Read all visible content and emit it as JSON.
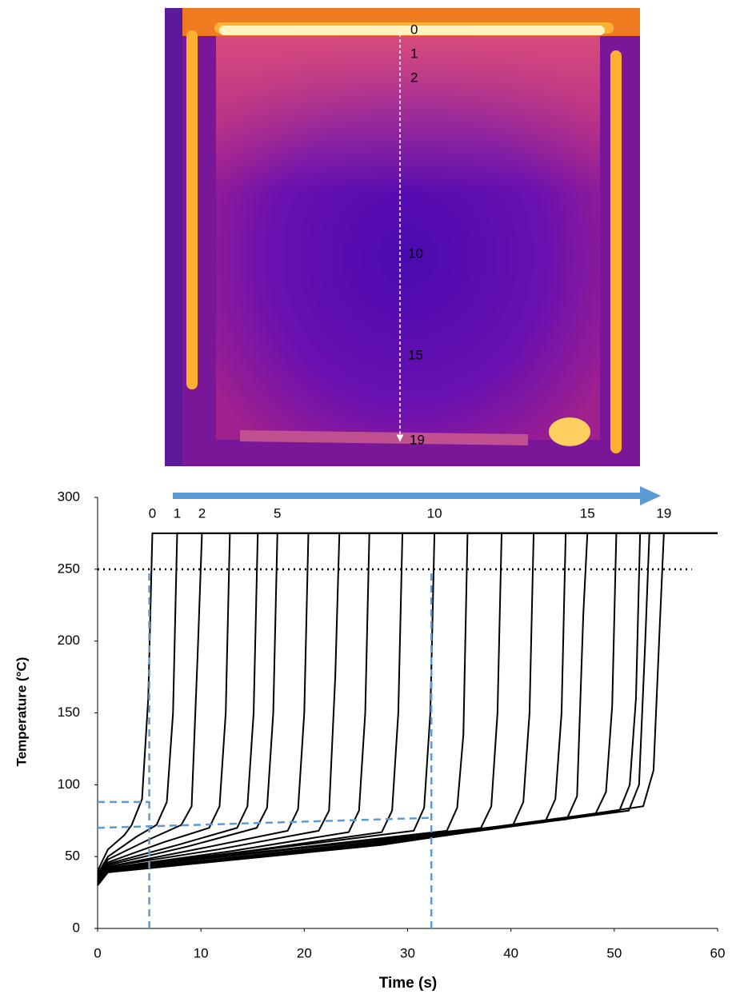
{
  "image": {
    "labels": [
      "0",
      "1",
      "2",
      "10",
      "15",
      "19"
    ]
  },
  "chart_data": {
    "type": "line",
    "y_label": "Temperature (°C)",
    "x_label": "Time (s)",
    "xlim": [
      0,
      60
    ],
    "ylim": [
      0,
      300
    ],
    "xticks": [
      0,
      10,
      20,
      30,
      40,
      50,
      60
    ],
    "yticks": [
      0,
      50,
      100,
      150,
      200,
      250,
      300
    ],
    "grid": false,
    "color": "#000000",
    "series": [
      {
        "name": "0",
        "x": [
          0,
          1,
          2.6,
          3.3,
          4.3,
          4.9,
          5.3,
          60
        ],
        "values": [
          40,
          55,
          65,
          72,
          90,
          160,
          275,
          275
        ]
      },
      {
        "name": "1",
        "x": [
          0,
          1,
          3.8,
          5.7,
          6.7,
          7.3,
          7.7,
          60
        ],
        "values": [
          38,
          50,
          64,
          72,
          88,
          150,
          275,
          275
        ]
      },
      {
        "name": "2",
        "x": [
          0,
          1,
          5,
          8.1,
          9.1,
          9.7,
          10.1,
          60
        ],
        "values": [
          37,
          48,
          62,
          72,
          85,
          194,
          275,
          275
        ]
      },
      {
        "x": [
          0,
          1,
          6.4,
          10.8,
          11.8,
          12.4,
          12.8,
          60
        ],
        "values": [
          36,
          46,
          60,
          70,
          85,
          150,
          275,
          275
        ]
      },
      {
        "x": [
          0,
          1,
          7.7,
          13.5,
          14.5,
          15.1,
          15.5,
          60
        ],
        "values": [
          35,
          45,
          58,
          70,
          85,
          150,
          275,
          275
        ]
      },
      {
        "name": "5",
        "x": [
          0,
          1,
          8.7,
          15.4,
          16.4,
          17,
          17.4,
          60
        ],
        "values": [
          35,
          44,
          57,
          70,
          84,
          150,
          275,
          275
        ]
      },
      {
        "x": [
          0,
          1,
          10.2,
          18.4,
          19.4,
          20,
          20.4,
          60
        ],
        "values": [
          34,
          43,
          56,
          68,
          83,
          150,
          275,
          275
        ]
      },
      {
        "x": [
          0,
          1,
          11.7,
          21.4,
          22.4,
          23,
          23.4,
          60
        ],
        "values": [
          34,
          43,
          55,
          68,
          82,
          175,
          275,
          275
        ]
      },
      {
        "x": [
          0,
          1,
          13.1,
          24.3,
          25.3,
          25.9,
          26.3,
          60
        ],
        "values": [
          33,
          42,
          54,
          67,
          82,
          150,
          275,
          275
        ]
      },
      {
        "x": [
          0,
          1,
          14.7,
          27.5,
          28.5,
          29.1,
          29.5,
          60
        ],
        "values": [
          33,
          42,
          54,
          67,
          82,
          150,
          275,
          275
        ]
      },
      {
        "name": "10",
        "x": [
          0,
          1,
          16.3,
          30.6,
          31.6,
          32.2,
          32.6,
          60
        ],
        "values": [
          33,
          42,
          55,
          68,
          84,
          150,
          275,
          275
        ]
      },
      {
        "x": [
          0,
          1,
          17.9,
          33.8,
          34.8,
          35.4,
          35.8,
          60
        ],
        "values": [
          32,
          42,
          55,
          68,
          84,
          135,
          275,
          275
        ]
      },
      {
        "x": [
          0,
          1,
          19.5,
          37.1,
          38.1,
          38.7,
          39.1,
          60
        ],
        "values": [
          32,
          41,
          56,
          70,
          85,
          150,
          275,
          275
        ]
      },
      {
        "x": [
          0,
          1,
          21.1,
          40.2,
          41.2,
          41.8,
          42.2,
          60
        ],
        "values": [
          32,
          41,
          57,
          72,
          88,
          150,
          275,
          275
        ]
      },
      {
        "x": [
          0,
          1,
          22.6,
          43.3,
          44.3,
          44.9,
          45.3,
          60
        ],
        "values": [
          31,
          40,
          57,
          74,
          90,
          150,
          275,
          275
        ]
      },
      {
        "name": "15",
        "x": [
          0,
          1,
          23.7,
          45.4,
          46.4,
          47,
          47.4,
          60
        ],
        "values": [
          31,
          40,
          57,
          76,
          92,
          218,
          275,
          275
        ]
      },
      {
        "x": [
          0,
          1,
          25.1,
          48.2,
          49.2,
          49.8,
          50.2,
          60
        ],
        "values": [
          31,
          40,
          58,
          80,
          95,
          155,
          275,
          275
        ]
      },
      {
        "x": [
          0,
          1,
          26.2,
          50.5,
          51.5,
          52.1,
          52.5,
          60
        ],
        "values": [
          31,
          40,
          58,
          82,
          100,
          160,
          275,
          275
        ]
      },
      {
        "x": [
          0,
          1,
          26.7,
          51.4,
          52.4,
          53,
          53.4,
          60
        ],
        "values": [
          30,
          40,
          58,
          82,
          100,
          200,
          275,
          275
        ]
      },
      {
        "name": "19",
        "x": [
          0,
          1,
          27.4,
          52.8,
          53.8,
          54.4,
          54.8,
          60
        ],
        "values": [
          30,
          39,
          58,
          85,
          110,
          210,
          275,
          275
        ]
      }
    ],
    "guides": {
      "color": "#5b9bd5",
      "lines": [
        {
          "x": [
            5,
            5
          ],
          "values": [
            0,
            250
          ]
        },
        {
          "x": [
            32.3,
            32.3
          ],
          "values": [
            0,
            250
          ]
        },
        {
          "x": [
            0,
            5
          ],
          "values": [
            88,
            88
          ]
        },
        {
          "x": [
            0,
            32.3
          ],
          "values": [
            70,
            77
          ]
        }
      ]
    },
    "threshold": {
      "x": [
        0,
        57.5
      ],
      "values": [
        250,
        250
      ]
    }
  }
}
